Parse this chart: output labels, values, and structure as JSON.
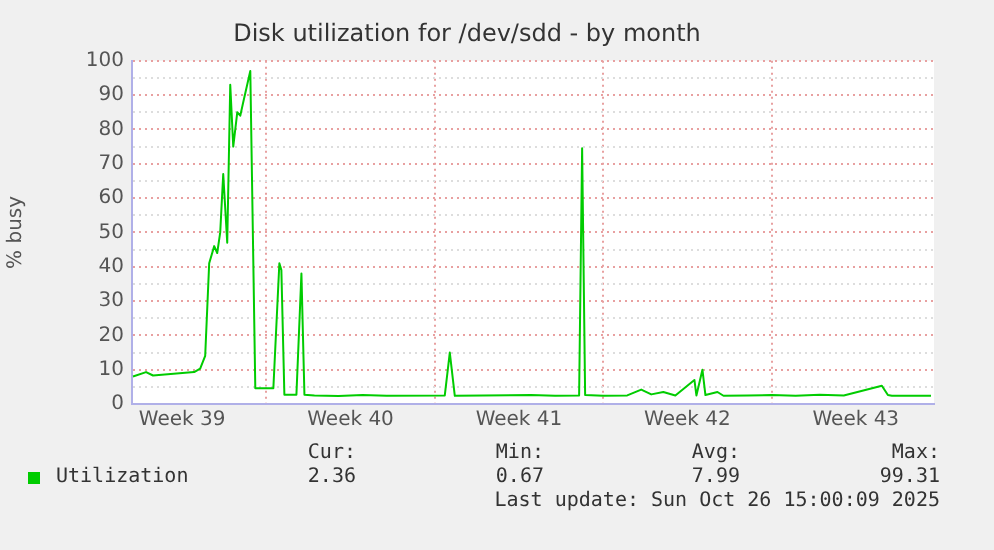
{
  "chart_data": {
    "type": "line",
    "title": "Disk utilization for /dev/sdd - by month",
    "ylabel": "% busy",
    "x": [
      "2025-09-23T11:00",
      "2025-09-24T00:00",
      "2025-09-24T07:00",
      "2025-09-26T00:00",
      "2025-09-26T06:00",
      "2025-09-26T11:00",
      "2025-09-26T15:00",
      "2025-09-26T20:00",
      "2025-09-26T23:00",
      "2025-09-27T02:00",
      "2025-09-27T05:00",
      "2025-09-27T09:00",
      "2025-09-27T12:00",
      "2025-09-27T15:00",
      "2025-09-27T19:00",
      "2025-09-27T22:00",
      "2025-09-28T01:00",
      "2025-09-28T08:00",
      "2025-09-28T13:00",
      "2025-09-29T07:00",
      "2025-09-29T13:00",
      "2025-09-29T15:00",
      "2025-09-29T18:00",
      "2025-09-30T06:00",
      "2025-09-30T11:00",
      "2025-09-30T14:00",
      "2025-10-01T00:00",
      "2025-10-02T00:00",
      "2025-10-03T00:00",
      "2025-10-04T00:00",
      "2025-10-06T10:00",
      "2025-10-06T15:00",
      "2025-10-06T20:00",
      "2025-10-08T00:00",
      "2025-10-10T00:00",
      "2025-10-11T00:00",
      "2025-10-12T00:00",
      "2025-10-12T03:00",
      "2025-10-12T06:00",
      "2025-10-13T00:00",
      "2025-10-14T00:00",
      "2025-10-14T14:00",
      "2025-10-15T00:00",
      "2025-10-15T12:00",
      "2025-10-16T00:00",
      "2025-10-16T19:00",
      "2025-10-16T21:00",
      "2025-10-17T03:00",
      "2025-10-17T06:00",
      "2025-10-17T18:00",
      "2025-10-18T00:00",
      "2025-10-19T00:00",
      "2025-10-20T00:00",
      "2025-10-21T00:00",
      "2025-10-22T00:00",
      "2025-10-23T00:00",
      "2025-10-24T14:00",
      "2025-10-24T20:00",
      "2025-10-25T00:00",
      "2025-10-26T15:00"
    ],
    "series": [
      {
        "name": "Utilization",
        "color": "#00cc00",
        "values": [
          8,
          9.3,
          8.3,
          9.3,
          10.3,
          14,
          41,
          46,
          44,
          50,
          67,
          47,
          93,
          75,
          85,
          84,
          88,
          97,
          4.6,
          4.6,
          41,
          39,
          2.7,
          2.7,
          38,
          2.7,
          2.5,
          2.3,
          2.6,
          2.4,
          2.5,
          15,
          2.4,
          2.5,
          2.6,
          2.4,
          2.5,
          74.5,
          2.6,
          2.4,
          2.5,
          4.2,
          2.8,
          3.5,
          2.5,
          7,
          2.5,
          10,
          2.6,
          3.5,
          2.4,
          2.5,
          2.6,
          2.4,
          2.7,
          2.5,
          5.3,
          2.6,
          2.4,
          2.4
        ]
      }
    ],
    "xlim": [
      "2025-09-23T10:00",
      "2025-10-26T18:00"
    ],
    "xticks": [
      {
        "value": "2025-09-25T12:00",
        "label": "Week 39"
      },
      {
        "value": "2025-09-29T00:00",
        "label": null
      },
      {
        "value": "2025-10-02T12:00",
        "label": "Week 40"
      },
      {
        "value": "2025-10-06T00:00",
        "label": null
      },
      {
        "value": "2025-10-09T12:00",
        "label": "Week 41"
      },
      {
        "value": "2025-10-13T00:00",
        "label": null
      },
      {
        "value": "2025-10-16T12:00",
        "label": "Week 42"
      },
      {
        "value": "2025-10-20T00:00",
        "label": null
      },
      {
        "value": "2025-10-23T12:00",
        "label": "Week 43"
      }
    ],
    "ylim": [
      0,
      100
    ],
    "yticks": [
      0,
      {
        "value": 5,
        "label": null
      },
      10,
      {
        "value": 15,
        "label": null
      },
      20,
      {
        "value": 25,
        "label": null
      },
      30,
      {
        "value": 35,
        "label": null
      },
      40,
      {
        "value": 45,
        "label": null
      },
      50,
      {
        "value": 55,
        "label": null
      },
      60,
      {
        "value": 65,
        "label": null
      },
      70,
      {
        "value": 75,
        "label": null
      },
      80,
      {
        "value": 85,
        "label": null
      },
      90,
      {
        "value": 95,
        "label": null
      },
      100
    ],
    "grid": true,
    "legend": "bottom left",
    "marker": "none",
    "line_style": "solid",
    "annotations": [
      "Cur:",
      "Min:",
      "Avg:",
      "Max:",
      "2.36",
      "0.67",
      "7.99",
      "99.31",
      "Last update: Sun Oct 26 15:00:09 2025"
    ]
  }
}
